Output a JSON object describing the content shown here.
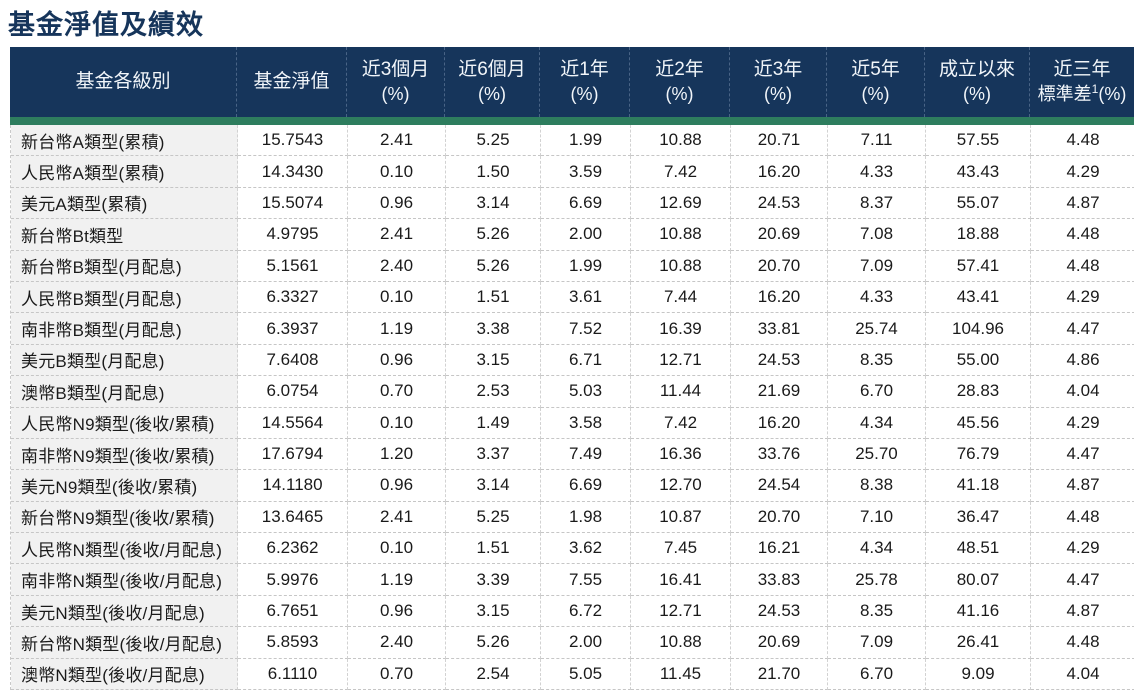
{
  "title": "基金淨值及績效",
  "colors": {
    "header_bg": "#16355B",
    "accent_green": "#2E7D5E",
    "label_bg": "#F1F1F1",
    "title_text": "#16355B",
    "header_text": "#F2F6FA"
  },
  "table": {
    "columns": [
      {
        "label": "基金各級別"
      },
      {
        "label": "基金淨值"
      },
      {
        "line1": "近3個月",
        "line2": "(%)"
      },
      {
        "line1": "近6個月",
        "line2": "(%)"
      },
      {
        "line1": "近1年",
        "line2": "(%)"
      },
      {
        "line1": "近2年",
        "line2": "(%)"
      },
      {
        "line1": "近3年",
        "line2": "(%)"
      },
      {
        "line1": "近5年",
        "line2": "(%)"
      },
      {
        "line1": "成立以來",
        "line2": "(%)"
      },
      {
        "line1": "近三年",
        "line2": "標準差",
        "sup": "1",
        "line2_suffix": "(%)"
      }
    ],
    "rows": [
      {
        "label": "新台幣A類型(累積)",
        "values": [
          "15.7543",
          "2.41",
          "5.25",
          "1.99",
          "10.88",
          "20.71",
          "7.11",
          "57.55",
          "4.48"
        ]
      },
      {
        "label": "人民幣A類型(累積)",
        "values": [
          "14.3430",
          "0.10",
          "1.50",
          "3.59",
          "7.42",
          "16.20",
          "4.33",
          "43.43",
          "4.29"
        ]
      },
      {
        "label": "美元A類型(累積)",
        "values": [
          "15.5074",
          "0.96",
          "3.14",
          "6.69",
          "12.69",
          "24.53",
          "8.37",
          "55.07",
          "4.87"
        ]
      },
      {
        "label": "新台幣Bt類型",
        "values": [
          "4.9795",
          "2.41",
          "5.26",
          "2.00",
          "10.88",
          "20.69",
          "7.08",
          "18.88",
          "4.48"
        ]
      },
      {
        "label": "新台幣B類型(月配息)",
        "values": [
          "5.1561",
          "2.40",
          "5.26",
          "1.99",
          "10.88",
          "20.70",
          "7.09",
          "57.41",
          "4.48"
        ]
      },
      {
        "label": "人民幣B類型(月配息)",
        "values": [
          "6.3327",
          "0.10",
          "1.51",
          "3.61",
          "7.44",
          "16.20",
          "4.33",
          "43.41",
          "4.29"
        ]
      },
      {
        "label": "南非幣B類型(月配息)",
        "values": [
          "6.3937",
          "1.19",
          "3.38",
          "7.52",
          "16.39",
          "33.81",
          "25.74",
          "104.96",
          "4.47"
        ]
      },
      {
        "label": "美元B類型(月配息)",
        "values": [
          "7.6408",
          "0.96",
          "3.15",
          "6.71",
          "12.71",
          "24.53",
          "8.35",
          "55.00",
          "4.86"
        ]
      },
      {
        "label": "澳幣B類型(月配息)",
        "values": [
          "6.0754",
          "0.70",
          "2.53",
          "5.03",
          "11.44",
          "21.69",
          "6.70",
          "28.83",
          "4.04"
        ]
      },
      {
        "label": "人民幣N9類型(後收/累積)",
        "values": [
          "14.5564",
          "0.10",
          "1.49",
          "3.58",
          "7.42",
          "16.20",
          "4.34",
          "45.56",
          "4.29"
        ]
      },
      {
        "label": "南非幣N9類型(後收/累積)",
        "values": [
          "17.6794",
          "1.20",
          "3.37",
          "7.49",
          "16.36",
          "33.76",
          "25.70",
          "76.79",
          "4.47"
        ]
      },
      {
        "label": "美元N9類型(後收/累積)",
        "values": [
          "14.1180",
          "0.96",
          "3.14",
          "6.69",
          "12.70",
          "24.54",
          "8.38",
          "41.18",
          "4.87"
        ]
      },
      {
        "label": "新台幣N9類型(後收/累積)",
        "values": [
          "13.6465",
          "2.41",
          "5.25",
          "1.98",
          "10.87",
          "20.70",
          "7.10",
          "36.47",
          "4.48"
        ]
      },
      {
        "label": "人民幣N類型(後收/月配息)",
        "values": [
          "6.2362",
          "0.10",
          "1.51",
          "3.62",
          "7.45",
          "16.21",
          "4.34",
          "48.51",
          "4.29"
        ]
      },
      {
        "label": "南非幣N類型(後收/月配息)",
        "values": [
          "5.9976",
          "1.19",
          "3.39",
          "7.55",
          "16.41",
          "33.83",
          "25.78",
          "80.07",
          "4.47"
        ]
      },
      {
        "label": "美元N類型(後收/月配息)",
        "values": [
          "6.7651",
          "0.96",
          "3.15",
          "6.72",
          "12.71",
          "24.53",
          "8.35",
          "41.16",
          "4.87"
        ]
      },
      {
        "label": "新台幣N類型(後收/月配息)",
        "values": [
          "5.8593",
          "2.40",
          "5.26",
          "2.00",
          "10.88",
          "20.69",
          "7.09",
          "26.41",
          "4.48"
        ]
      },
      {
        "label": "澳幣N類型(後收/月配息)",
        "values": [
          "6.1110",
          "0.70",
          "2.54",
          "5.05",
          "11.45",
          "21.70",
          "6.70",
          "9.09",
          "4.04"
        ]
      }
    ]
  }
}
